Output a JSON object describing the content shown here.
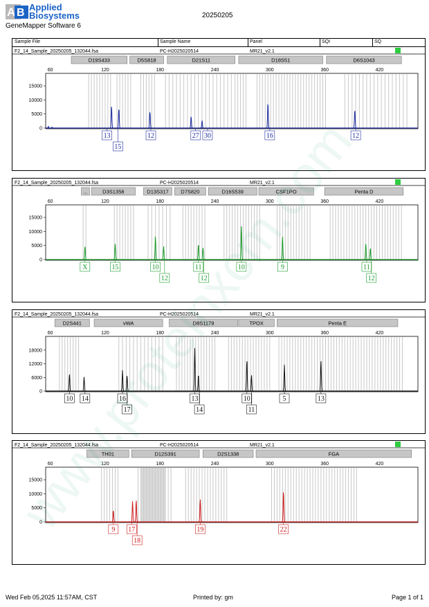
{
  "header": {
    "brand_line1": "Applied",
    "brand_line2": "Biosystems",
    "software": "GeneMapper Software 6",
    "run_name": "20250205",
    "logo_colors": [
      "#b8b8b8",
      "#1b63c6"
    ]
  },
  "columns": {
    "sample_file": "Sample File",
    "sample_name": "Sample Name",
    "panel": "Panel",
    "sqi": "SQI",
    "sq": "SQ"
  },
  "footer": {
    "date": "Wed Feb 05,2025 11:57AM, CST",
    "printed_by": "Printed by: gm",
    "page": "Page 1 of 1"
  },
  "watermark": "www.proteinxcm.com",
  "chart_data": [
    {
      "type": "line",
      "file": "F2_14_Sample_20250205_132044.fsa",
      "sample": "PC-H2025020514",
      "panel_name": "MR21_v2.1",
      "sq_color": "#2ecc40",
      "color": "#1a2a9c",
      "xlim": [
        55,
        462
      ],
      "ylim": [
        0,
        17000
      ],
      "x_ticks": [
        60,
        120,
        180,
        240,
        300,
        360,
        420
      ],
      "y_ticks": [
        0,
        5000,
        10000,
        15000
      ],
      "bins": [
        102,
        105,
        108,
        111,
        114,
        117,
        120,
        123,
        126,
        133,
        136,
        139,
        142,
        145,
        148,
        159,
        162,
        165,
        168,
        171,
        174,
        186,
        190,
        194,
        198,
        202,
        206,
        210,
        214,
        218,
        222,
        226,
        230,
        234,
        238,
        242,
        246,
        250,
        254,
        258,
        262,
        265,
        268,
        271,
        274,
        286,
        289,
        292,
        295,
        298,
        301,
        304,
        307,
        310,
        313,
        316,
        319,
        322,
        325,
        328,
        331,
        334,
        337,
        340,
        343,
        346,
        349,
        352,
        355,
        358,
        361,
        382,
        386,
        390,
        394,
        398,
        402,
        406,
        410,
        414,
        418,
        422,
        426,
        430,
        434,
        438,
        442,
        446,
        450
      ],
      "markers": [
        {
          "name": "D19S433",
          "start": 83,
          "end": 144
        },
        {
          "name": "D5S818",
          "start": 147,
          "end": 184
        },
        {
          "name": "D21S11",
          "start": 188,
          "end": 262
        },
        {
          "name": "D18S51",
          "start": 266,
          "end": 358
        },
        {
          "name": "D6S1043",
          "start": 362,
          "end": 444
        }
      ],
      "peaks": [
        {
          "x": 127,
          "y": 8000
        },
        {
          "x": 135,
          "y": 7200
        },
        {
          "x": 169,
          "y": 6000
        },
        {
          "x": 214,
          "y": 4200
        },
        {
          "x": 226,
          "y": 2700
        },
        {
          "x": 298,
          "y": 9200
        },
        {
          "x": 393,
          "y": 6600
        },
        {
          "x": 58,
          "y": 600
        },
        {
          "x": 62,
          "y": 300
        }
      ],
      "labels": [
        {
          "text": "13",
          "x": 122,
          "row": 0
        },
        {
          "text": "15",
          "x": 134,
          "row": 1
        },
        {
          "text": "12",
          "x": 170,
          "row": 0
        },
        {
          "text": "27",
          "x": 219,
          "row": 0
        },
        {
          "text": "30",
          "x": 232,
          "row": 0
        },
        {
          "text": "16",
          "x": 300,
          "row": 0
        },
        {
          "text": "12",
          "x": 394,
          "row": 0
        }
      ]
    },
    {
      "type": "line",
      "file": "F2_14_Sample_20250205_132044.fsa",
      "sample": "PC-H2025020514",
      "panel_name": "MR21_v2.1",
      "sq_color": "#2ecc40",
      "color": "#1a9b2a",
      "xlim": [
        55,
        462
      ],
      "ylim": [
        0,
        17000
      ],
      "x_ticks": [
        60,
        120,
        180,
        240,
        300,
        360,
        420
      ],
      "y_ticks": [
        0,
        5000,
        10000,
        15000
      ],
      "bins": [
        96,
        99,
        130,
        133,
        136,
        139,
        142,
        145,
        148,
        151,
        167,
        171,
        175,
        179,
        183,
        187,
        191,
        205,
        208,
        211,
        214,
        217,
        220,
        223,
        226,
        229,
        250,
        253,
        256,
        259,
        262,
        265,
        268,
        271,
        274,
        277,
        280,
        283,
        286,
        289,
        308,
        311,
        314,
        317,
        320,
        323,
        326,
        329,
        332,
        335,
        338,
        341,
        344,
        366,
        369,
        372,
        375,
        378,
        381,
        384,
        387,
        390,
        393,
        396,
        399,
        402,
        405,
        408,
        411,
        414,
        417,
        420,
        423,
        426,
        429,
        432,
        435,
        438,
        441,
        444
      ],
      "markers": [
        {
          "name": "...",
          "start": 94,
          "end": 103
        },
        {
          "name": "D3S1358",
          "start": 105,
          "end": 153
        },
        {
          "name": "D13S317",
          "start": 162,
          "end": 193
        },
        {
          "name": "D7S820",
          "start": 196,
          "end": 230
        },
        {
          "name": "D16S539",
          "start": 233,
          "end": 286
        },
        {
          "name": "CSF1PO",
          "start": 288,
          "end": 348
        },
        {
          "name": "Penta D",
          "start": 360,
          "end": 446
        }
      ],
      "peaks": [
        {
          "x": 98,
          "y": 4800
        },
        {
          "x": 131,
          "y": 5600
        },
        {
          "x": 175,
          "y": 8400
        },
        {
          "x": 184,
          "y": 4700
        },
        {
          "x": 222,
          "y": 5600
        },
        {
          "x": 227,
          "y": 4300
        },
        {
          "x": 269,
          "y": 12200
        },
        {
          "x": 314,
          "y": 8400
        },
        {
          "x": 405,
          "y": 5800
        },
        {
          "x": 410,
          "y": 4200
        }
      ],
      "labels": [
        {
          "text": "X",
          "x": 98,
          "row": 0
        },
        {
          "text": "15",
          "x": 131,
          "row": 0
        },
        {
          "text": "10",
          "x": 175,
          "row": 0
        },
        {
          "text": "12",
          "x": 185,
          "row": 1
        },
        {
          "text": "11",
          "x": 222,
          "row": 0
        },
        {
          "text": "12",
          "x": 228,
          "row": 1
        },
        {
          "text": "10",
          "x": 269,
          "row": 0
        },
        {
          "text": "9",
          "x": 314,
          "row": 0
        },
        {
          "text": "11",
          "x": 406,
          "row": 0
        },
        {
          "text": "12",
          "x": 411,
          "row": 1
        }
      ]
    },
    {
      "type": "line",
      "file": "F2_14_Sample_20250205_132044.fsa",
      "sample": "PC-H2025020514",
      "panel_name": "MR21_v2.1",
      "sq_color": null,
      "color": "#111111",
      "xlim": [
        55,
        462
      ],
      "ylim": [
        0,
        21000
      ],
      "x_ticks": [
        60,
        120,
        180,
        240,
        300,
        360,
        420
      ],
      "y_ticks": [
        0,
        6000,
        12000,
        18000
      ],
      "bins": [
        70,
        73,
        76,
        79,
        82,
        85,
        88,
        91,
        135,
        139,
        143,
        147,
        151,
        155,
        159,
        163,
        167,
        171,
        175,
        179,
        183,
        198,
        201,
        204,
        207,
        210,
        213,
        216,
        219,
        222,
        225,
        228,
        231,
        234,
        237,
        240,
        255,
        258,
        261,
        264,
        267,
        270,
        273,
        276,
        279,
        282,
        285,
        288,
        291,
        294,
        297,
        300,
        310,
        313,
        316,
        319,
        322,
        325,
        328,
        331,
        334,
        337,
        340,
        343,
        346,
        349,
        352,
        355,
        358,
        361,
        364,
        367,
        370,
        373,
        376,
        379,
        382,
        385,
        388,
        391,
        394,
        397,
        400,
        403,
        406,
        409,
        412,
        415,
        418,
        421,
        424,
        427,
        430,
        433,
        436,
        439,
        442,
        445
      ],
      "markers": [
        {
          "name": "D2S441",
          "start": 65,
          "end": 103
        },
        {
          "name": "vWA",
          "start": 108,
          "end": 183
        },
        {
          "name": "D8S1179",
          "start": 190,
          "end": 265
        },
        {
          "name": "TPOX",
          "start": 266,
          "end": 305
        },
        {
          "name": "Penta E",
          "start": 308,
          "end": 440
        }
      ],
      "peaks": [
        {
          "x": 81,
          "y": 7500
        },
        {
          "x": 97,
          "y": 6200
        },
        {
          "x": 139,
          "y": 9200
        },
        {
          "x": 144,
          "y": 6900
        },
        {
          "x": 218,
          "y": 19000
        },
        {
          "x": 222,
          "y": 7400
        },
        {
          "x": 275,
          "y": 14000
        },
        {
          "x": 280,
          "y": 7000
        },
        {
          "x": 316,
          "y": 11600
        },
        {
          "x": 356,
          "y": 13500
        }
      ],
      "labels": [
        {
          "text": "10",
          "x": 81,
          "row": 0
        },
        {
          "text": "14",
          "x": 98,
          "row": 0
        },
        {
          "text": "16",
          "x": 139,
          "row": 0
        },
        {
          "text": "17",
          "x": 144,
          "row": 1
        },
        {
          "text": "13",
          "x": 218,
          "row": 0
        },
        {
          "text": "14",
          "x": 223,
          "row": 1
        },
        {
          "text": "10",
          "x": 275,
          "row": 0
        },
        {
          "text": "11",
          "x": 280,
          "row": 1
        },
        {
          "text": "5",
          "x": 316,
          "row": 0
        },
        {
          "text": "13",
          "x": 356,
          "row": 0
        }
      ]
    },
    {
      "type": "line",
      "file": "F2_14_Sample_20250205_132044.fsa",
      "sample": "PC-H2025020514",
      "panel_name": "MR21_v2.1",
      "sq_color": "#2ecc40",
      "color": "#cc1a1a",
      "xlim": [
        55,
        462
      ],
      "ylim": [
        0,
        17000
      ],
      "x_ticks": [
        60,
        120,
        180,
        240,
        300,
        360,
        420
      ],
      "y_ticks": [
        0,
        5000,
        10000,
        15000
      ],
      "bins": [
        116,
        119,
        122,
        125,
        128,
        131,
        134,
        156,
        159,
        160,
        161,
        162,
        163,
        164,
        165,
        166,
        167,
        168,
        169,
        170,
        171,
        172,
        173,
        174,
        175,
        176,
        177,
        178,
        179,
        180,
        181,
        182,
        183,
        184,
        185,
        186,
        189,
        192,
        208,
        211,
        214,
        217,
        220,
        223,
        226,
        229,
        232,
        235,
        238,
        241,
        244,
        247,
        250,
        253,
        302,
        305,
        308,
        311,
        314,
        317,
        320,
        323,
        326,
        329,
        332,
        335,
        338,
        341,
        344,
        347,
        350,
        353,
        356,
        359,
        362,
        365,
        368,
        371,
        374,
        377,
        380,
        383,
        386,
        389,
        392,
        395
      ],
      "markers": [
        {
          "name": "TH01",
          "start": 100,
          "end": 146
        },
        {
          "name": "D12S391",
          "start": 149,
          "end": 223
        },
        {
          "name": "D2S1338",
          "start": 227,
          "end": 282
        },
        {
          "name": "FGA",
          "start": 285,
          "end": 455
        }
      ],
      "peaks": [
        {
          "x": 129,
          "y": 4200
        },
        {
          "x": 150,
          "y": 7400
        },
        {
          "x": 154,
          "y": 7800
        },
        {
          "x": 224,
          "y": 8100
        },
        {
          "x": 315,
          "y": 11200
        }
      ],
      "labels": [
        {
          "text": "9",
          "x": 129,
          "row": 0
        },
        {
          "text": "17",
          "x": 149,
          "row": 0
        },
        {
          "text": "18",
          "x": 155,
          "row": 1
        },
        {
          "text": "19",
          "x": 224,
          "row": 0
        },
        {
          "text": "22",
          "x": 315,
          "row": 0
        }
      ]
    }
  ]
}
